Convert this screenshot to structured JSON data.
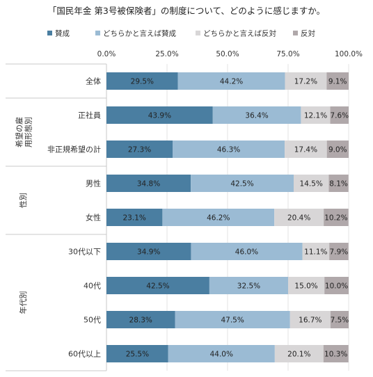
{
  "chart_data": {
    "type": "bar",
    "orientation": "horizontal",
    "stacked": true,
    "title": "「国民年金 第3号被保険者」の制度について、どのように感じますか。",
    "legend_position": "top",
    "xlim": [
      0,
      100
    ],
    "x_tick_labels": [
      "0.0%",
      "25.0%",
      "50.0%",
      "75.0%",
      "100.0%"
    ],
    "grid": true,
    "categories": [
      "全体",
      "正社員",
      "非正規希望の計",
      "男性",
      "女性",
      "30代以下",
      "40代",
      "50代",
      "60代以上"
    ],
    "groups": [
      {
        "label": "",
        "categories": [
          "全体"
        ]
      },
      {
        "label": "希望の雇用形態別",
        "categories": [
          "正社員",
          "非正規希望の計"
        ]
      },
      {
        "label": "性別",
        "categories": [
          "男性",
          "女性"
        ]
      },
      {
        "label": "年代別",
        "categories": [
          "30代以下",
          "40代",
          "50代",
          "60代以上"
        ]
      }
    ],
    "series": [
      {
        "name": "賛成",
        "color": "#4a7ea1",
        "values": [
          29.5,
          43.9,
          27.3,
          34.8,
          23.1,
          34.9,
          42.5,
          28.3,
          25.5
        ],
        "labels": [
          "29.5%",
          "43.9%",
          "27.3%",
          "34.8%",
          "23.1%",
          "34.9%",
          "42.5%",
          "28.3%",
          "25.5%"
        ]
      },
      {
        "name": "どちらかと言えば賛成",
        "color": "#9bbbd4",
        "values": [
          44.2,
          36.4,
          46.3,
          42.5,
          46.2,
          46.0,
          32.5,
          47.5,
          44.0
        ],
        "labels": [
          "44.2%",
          "36.4%",
          "46.3%",
          "42.5%",
          "46.2%",
          "46.0%",
          "32.5%",
          "47.5%",
          "44.0%"
        ]
      },
      {
        "name": "どちらかと言えば反対",
        "color": "#d8d6d7",
        "values": [
          17.2,
          12.1,
          17.4,
          14.5,
          20.4,
          11.1,
          15.0,
          16.7,
          20.1
        ],
        "labels": [
          "17.2%",
          "12.1%",
          "17.4%",
          "14.5%",
          "20.4%",
          "11.1%",
          "15.0%",
          "16.7%",
          "20.1%"
        ]
      },
      {
        "name": "反対",
        "color": "#b0a8aa",
        "values": [
          9.1,
          7.6,
          9.0,
          8.1,
          10.2,
          7.9,
          10.0,
          7.5,
          10.3
        ],
        "labels": [
          "9.1%",
          "7.6%",
          "9.0%",
          "8.1%",
          "10.2%",
          "7.9%",
          "10.0%",
          "7.5%",
          "10.3%"
        ]
      }
    ]
  }
}
